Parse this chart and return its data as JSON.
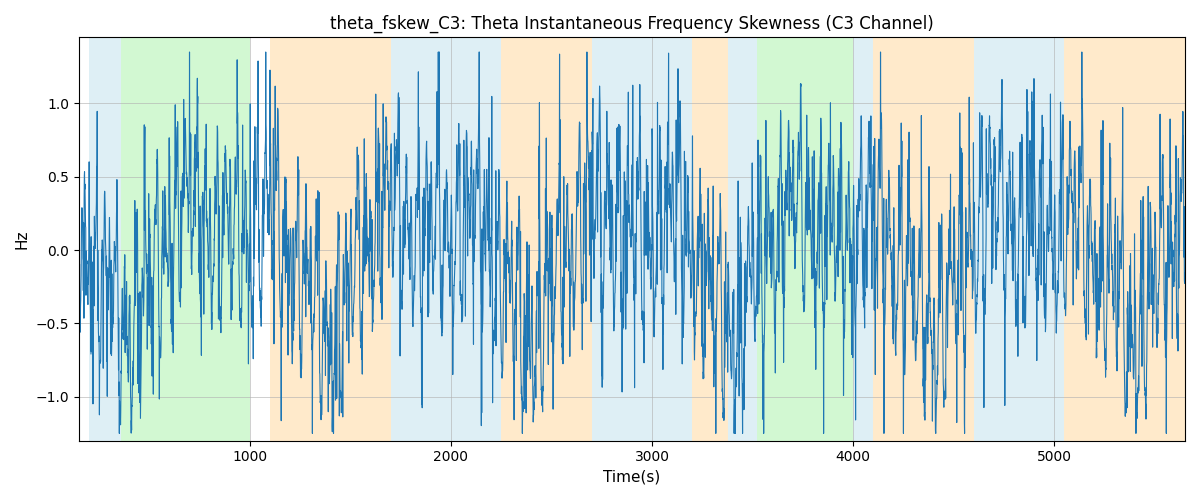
{
  "title": "theta_fskew_C3: Theta Instantaneous Frequency Skewness (C3 Channel)",
  "xlabel": "Time(s)",
  "ylabel": "Hz",
  "xlim": [
    150,
    5650
  ],
  "ylim": [
    -1.3,
    1.45
  ],
  "yticks": [
    -1.0,
    -0.5,
    0.0,
    0.5,
    1.0
  ],
  "xticks": [
    1000,
    2000,
    3000,
    4000,
    5000
  ],
  "line_color": "#1f77b4",
  "line_width": 0.8,
  "bg_color": "#ffffff",
  "grid_color": "#b0b0b0",
  "title_fontsize": 12,
  "label_fontsize": 11,
  "bands": [
    {
      "xmin": 200,
      "xmax": 360,
      "color": "#add8e6",
      "alpha": 0.4
    },
    {
      "xmin": 360,
      "xmax": 1000,
      "color": "#90ee90",
      "alpha": 0.4
    },
    {
      "xmin": 1100,
      "xmax": 1700,
      "color": "#ffd699",
      "alpha": 0.5
    },
    {
      "xmin": 1700,
      "xmax": 2250,
      "color": "#add8e6",
      "alpha": 0.4
    },
    {
      "xmin": 2250,
      "xmax": 2700,
      "color": "#ffd699",
      "alpha": 0.5
    },
    {
      "xmin": 2700,
      "xmax": 3200,
      "color": "#add8e6",
      "alpha": 0.4
    },
    {
      "xmin": 3200,
      "xmax": 3380,
      "color": "#ffd699",
      "alpha": 0.5
    },
    {
      "xmin": 3380,
      "xmax": 3520,
      "color": "#add8e6",
      "alpha": 0.4
    },
    {
      "xmin": 3520,
      "xmax": 4000,
      "color": "#90ee90",
      "alpha": 0.4
    },
    {
      "xmin": 4000,
      "xmax": 4100,
      "color": "#add8e6",
      "alpha": 0.4
    },
    {
      "xmin": 4100,
      "xmax": 4600,
      "color": "#ffd699",
      "alpha": 0.5
    },
    {
      "xmin": 4600,
      "xmax": 5050,
      "color": "#add8e6",
      "alpha": 0.4
    },
    {
      "xmin": 5050,
      "xmax": 5650,
      "color": "#ffd699",
      "alpha": 0.5
    }
  ],
  "seed": 42,
  "t_start": 150,
  "t_end": 5650,
  "dt": 1.0
}
